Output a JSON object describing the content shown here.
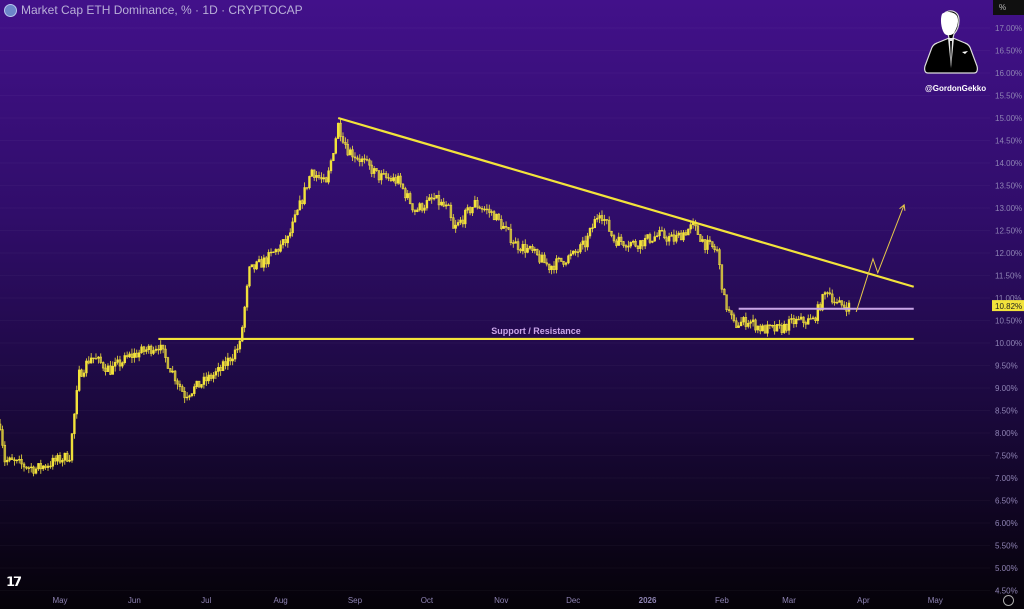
{
  "header": {
    "title": "Market Cap ETH Dominance, % · 1D · CRYPTOCAP",
    "symbol_icon": "ethereum-icon"
  },
  "watermark": {
    "handle": "@GordonGekko",
    "image": "businessman-silhouette"
  },
  "axis": {
    "unit": "%",
    "settings_icon": "gear-icon",
    "brand_logo": "TV"
  },
  "colors": {
    "candles": "#f3e33b",
    "trendline": "#f3e33b",
    "level": "#c9a6e8",
    "price_label_bg": "#f3e33b"
  },
  "chart_data": {
    "type": "candlestick",
    "title": "Market Cap ETH Dominance, % · 1D · CRYPTOCAP",
    "yaxis": {
      "ylim": [
        4.5,
        17.0
      ],
      "ticks": [
        "17.00%",
        "16.50%",
        "16.00%",
        "15.50%",
        "15.00%",
        "14.50%",
        "14.00%",
        "13.50%",
        "13.00%",
        "12.50%",
        "12.00%",
        "11.50%",
        "11.00%",
        "10.50%",
        "10.00%",
        "9.50%",
        "9.00%",
        "8.50%",
        "8.00%",
        "7.50%",
        "7.00%",
        "6.50%",
        "6.00%",
        "5.50%",
        "5.00%",
        "4.50%"
      ],
      "position": "right"
    },
    "xaxis": {
      "ticks": [
        {
          "label": "May",
          "date": "2025-05-01"
        },
        {
          "label": "Jun",
          "date": "2025-06-01"
        },
        {
          "label": "Jul",
          "date": "2025-07-01"
        },
        {
          "label": "Aug",
          "date": "2025-08-01"
        },
        {
          "label": "Sep",
          "date": "2025-09-01"
        },
        {
          "label": "Oct",
          "date": "2025-10-01"
        },
        {
          "label": "Nov",
          "date": "2025-11-01"
        },
        {
          "label": "Dec",
          "date": "2025-12-01"
        },
        {
          "label": "2026",
          "date": "2026-01-01"
        },
        {
          "label": "Feb",
          "date": "2026-02-01"
        },
        {
          "label": "Mar",
          "date": "2026-03-01"
        },
        {
          "label": "Apr",
          "date": "2026-04-01"
        },
        {
          "label": "May",
          "date": "2026-05-01"
        }
      ]
    },
    "current_price": "10.82%",
    "price_path": [
      [
        "2025-04-06",
        8.2
      ],
      [
        "2025-04-08",
        7.4
      ],
      [
        "2025-04-21",
        7.2
      ],
      [
        "2025-05-05",
        7.5
      ],
      [
        "2025-05-09",
        9.3
      ],
      [
        "2025-05-14",
        9.7
      ],
      [
        "2025-05-22",
        9.4
      ],
      [
        "2025-05-30",
        9.7
      ],
      [
        "2025-06-11",
        9.95
      ],
      [
        "2025-06-22",
        8.85
      ],
      [
        "2025-06-29",
        9.1
      ],
      [
        "2025-07-07",
        9.4
      ],
      [
        "2025-07-15",
        9.95
      ],
      [
        "2025-07-19",
        11.6
      ],
      [
        "2025-07-26",
        11.85
      ],
      [
        "2025-08-04",
        12.3
      ],
      [
        "2025-08-10",
        13.2
      ],
      [
        "2025-08-14",
        13.85
      ],
      [
        "2025-08-20",
        13.5
      ],
      [
        "2025-08-25",
        14.85
      ],
      [
        "2025-08-29",
        14.3
      ],
      [
        "2025-09-04",
        14.05
      ],
      [
        "2025-09-11",
        13.7
      ],
      [
        "2025-09-19",
        13.6
      ],
      [
        "2025-09-26",
        12.95
      ],
      [
        "2025-10-04",
        13.2
      ],
      [
        "2025-10-10",
        12.95
      ],
      [
        "2025-10-12",
        12.5
      ],
      [
        "2025-10-21",
        13.1
      ],
      [
        "2025-10-29",
        12.85
      ],
      [
        "2025-11-07",
        12.2
      ],
      [
        "2025-11-13",
        12.05
      ],
      [
        "2025-11-21",
        11.7
      ],
      [
        "2025-12-01",
        11.95
      ],
      [
        "2025-12-06",
        12.2
      ],
      [
        "2025-12-12",
        12.95
      ],
      [
        "2025-12-18",
        12.3
      ],
      [
        "2025-12-27",
        12.2
      ],
      [
        "2026-01-06",
        12.4
      ],
      [
        "2026-01-12",
        12.3
      ],
      [
        "2026-01-20",
        12.6
      ],
      [
        "2026-01-25",
        12.2
      ],
      [
        "2026-01-30",
        12.05
      ],
      [
        "2026-02-02",
        10.95
      ],
      [
        "2026-02-06",
        10.4
      ],
      [
        "2026-02-12",
        10.5
      ],
      [
        "2026-02-18",
        10.3
      ],
      [
        "2026-02-25",
        10.3
      ],
      [
        "2026-03-03",
        10.47
      ],
      [
        "2026-03-11",
        10.5
      ],
      [
        "2026-03-17",
        11.2
      ],
      [
        "2026-03-21",
        10.85
      ],
      [
        "2026-03-26",
        10.82
      ]
    ],
    "annotations": {
      "descending_trendline": [
        [
          "2025-08-25",
          15.0
        ],
        [
          "2026-04-22",
          11.25
        ]
      ],
      "support_resistance": {
        "label": "Support / Resistance",
        "value": 10.09,
        "from": "2025-06-11",
        "to": "2026-04-22"
      },
      "horizontal_level": {
        "value": 10.76,
        "from": "2026-02-08",
        "to": "2026-04-22"
      },
      "projection_arrow": [
        [
          "2026-03-29",
          10.69
        ],
        [
          "2026-04-05",
          11.87
        ],
        [
          "2026-04-07",
          11.56
        ],
        [
          "2026-04-18",
          13.07
        ]
      ]
    }
  }
}
